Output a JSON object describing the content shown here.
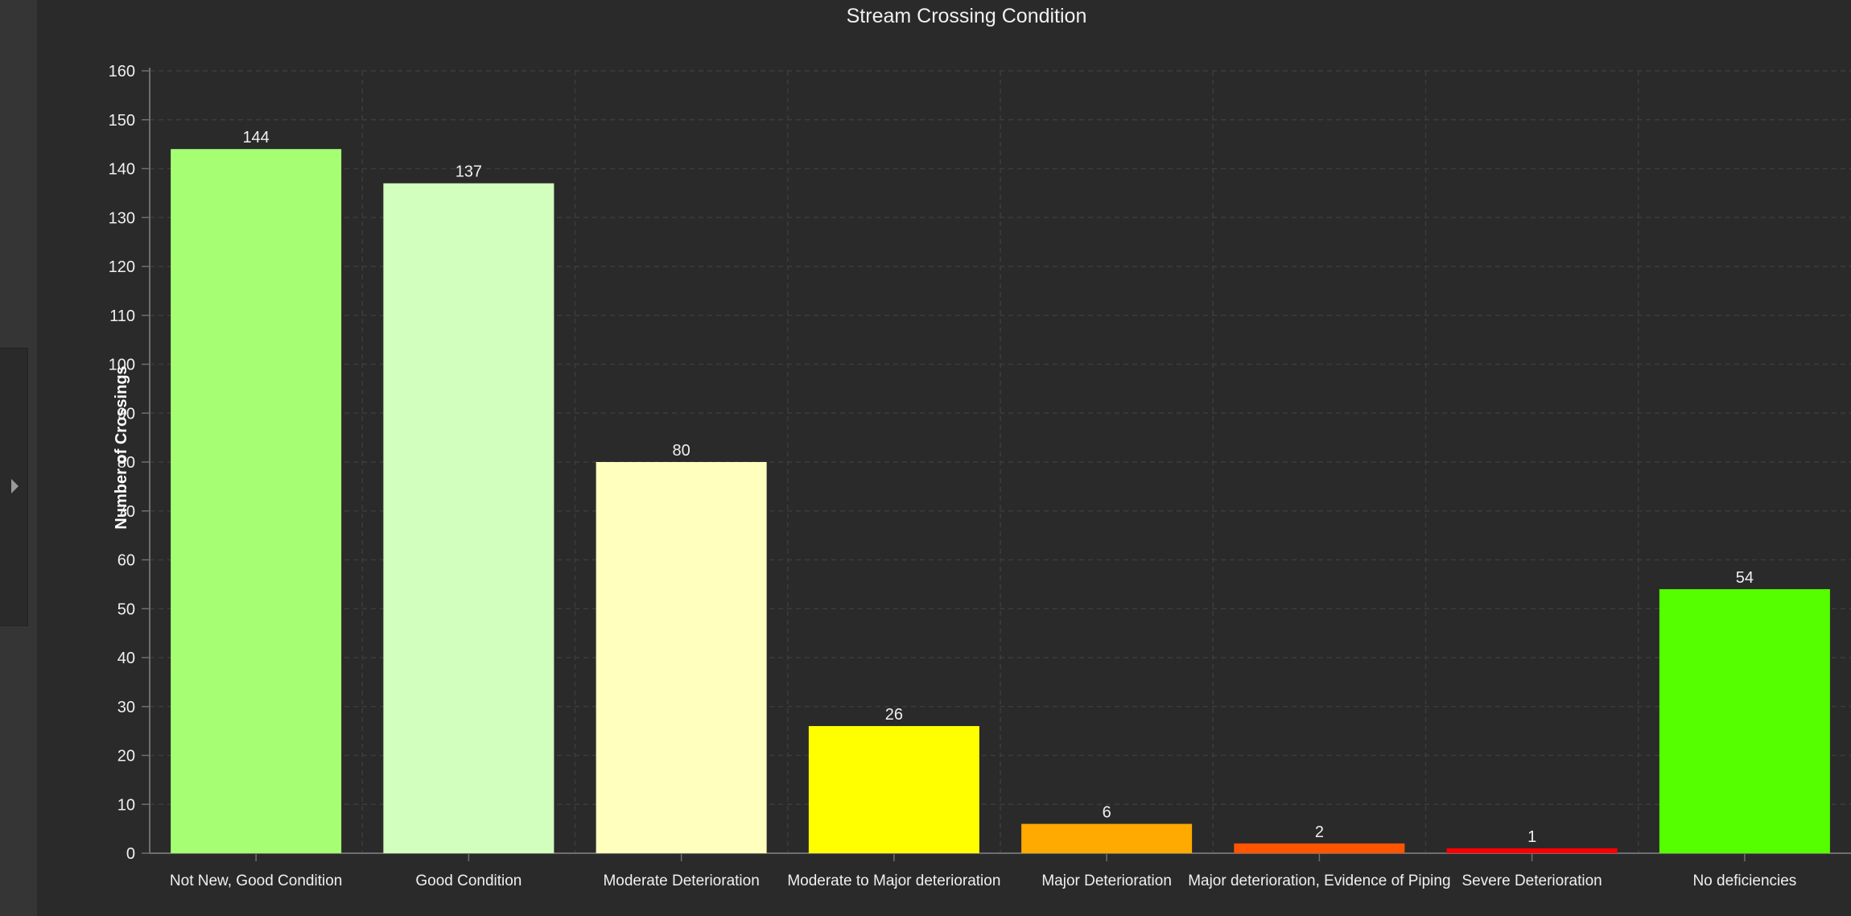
{
  "chart_data": {
    "type": "bar",
    "title": "Stream Crossing Condition",
    "xlabel": "",
    "ylabel": "Number of Crossings",
    "ylim": [
      0,
      160
    ],
    "yticks": [
      0,
      10,
      20,
      30,
      40,
      50,
      60,
      70,
      80,
      90,
      100,
      110,
      120,
      130,
      140,
      150,
      160
    ],
    "grid": true,
    "legend": "none",
    "categories": [
      "Not New, Good Condition",
      "Good Condition",
      "Moderate Deterioration",
      "Moderate to Major deterioration",
      "Major Deterioration",
      "Major deterioration, Evidence of Piping",
      "Severe Deterioration",
      "No deficiencies"
    ],
    "values": [
      144,
      137,
      80,
      26,
      6,
      2,
      1,
      54
    ],
    "colors": [
      "#a6ff73",
      "#d3ffbe",
      "#ffffbe",
      "#ffff00",
      "#ffaa00",
      "#ff5500",
      "#ff0000",
      "#55ff00"
    ]
  },
  "colors": {
    "background": "#2a2a2a",
    "grid": "#3c3c3c",
    "axis": "#6e6e6e",
    "text": "#f0f0f0"
  }
}
